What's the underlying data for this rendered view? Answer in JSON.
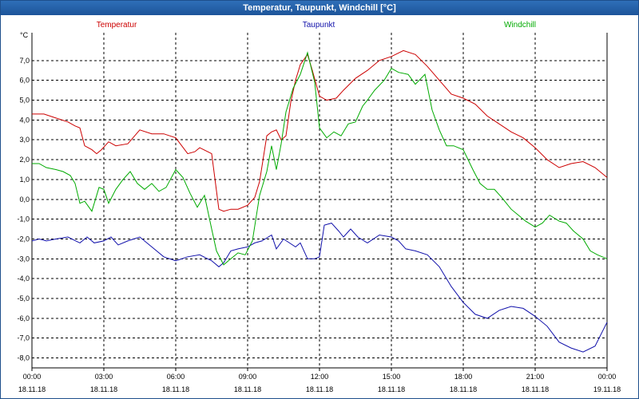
{
  "window": {
    "title": "Temperatur, Taupunkt, Windchill [°C]"
  },
  "chart_data": {
    "type": "line",
    "title": "Temperatur, Taupunkt, Windchill [°C]",
    "ylabel": "°C",
    "ylim": [
      -8.5,
      8.4
    ],
    "y_ticks": [
      "7,0",
      "6,0",
      "5,0",
      "4,0",
      "3,0",
      "2,0",
      "1,0",
      "0,0",
      "-1,0",
      "-2,0",
      "-3,0",
      "-4,0",
      "-5,0",
      "-6,0",
      "-7,0",
      "-8,0"
    ],
    "y_tick_values": [
      7,
      6,
      5,
      4,
      3,
      2,
      1,
      0,
      -1,
      -2,
      -3,
      -4,
      -5,
      -6,
      -7,
      -8
    ],
    "x_range_hours": [
      0,
      24
    ],
    "x_ticks": [
      {
        "time": "00:00",
        "date": "18.11.18",
        "hour": 0
      },
      {
        "time": "03:00",
        "date": "18.11.18",
        "hour": 3
      },
      {
        "time": "06:00",
        "date": "18.11.18",
        "hour": 6
      },
      {
        "time": "09:00",
        "date": "18.11.18",
        "hour": 9
      },
      {
        "time": "12:00",
        "date": "18.11.18",
        "hour": 12
      },
      {
        "time": "15:00",
        "date": "18.11.18",
        "hour": 15
      },
      {
        "time": "18:00",
        "date": "18.11.18",
        "hour": 18
      },
      {
        "time": "21:00",
        "date": "18.11.18",
        "hour": 21
      },
      {
        "time": "00:00",
        "date": "19.11.18",
        "hour": 24
      }
    ],
    "grid": true,
    "series": [
      {
        "name": "Temperatur",
        "color": "#cc0000",
        "x": [
          0,
          0.5,
          1,
          1.5,
          1.8,
          2,
          2.2,
          2.5,
          2.7,
          2.9,
          3.2,
          3.5,
          4,
          4.5,
          5,
          5.5,
          6,
          6.5,
          6.8,
          7,
          7.5,
          7.8,
          8,
          8.3,
          8.6,
          9,
          9.3,
          9.5,
          9.8,
          10,
          10.2,
          10.4,
          10.6,
          10.8,
          11,
          11.2,
          11.5,
          11.7,
          12,
          12.3,
          12.7,
          13,
          13.5,
          14,
          14.5,
          15,
          15.5,
          16,
          16.5,
          17,
          17.5,
          18,
          18.5,
          19,
          19.5,
          20,
          20.5,
          21,
          21.5,
          22,
          22.5,
          23,
          23.5,
          24
        ],
        "values": [
          4.3,
          4.3,
          4.1,
          3.9,
          3.7,
          3.6,
          2.7,
          2.5,
          2.3,
          2.5,
          2.9,
          2.7,
          2.8,
          3.5,
          3.3,
          3.3,
          3.1,
          2.3,
          2.4,
          2.6,
          2.3,
          -0.5,
          -0.6,
          -0.5,
          -0.5,
          -0.3,
          0.1,
          0.9,
          3.2,
          3.4,
          3.5,
          3.0,
          3.2,
          4.9,
          6.0,
          6.8,
          7.3,
          6.5,
          5.2,
          5.0,
          5.1,
          5.5,
          6.1,
          6.5,
          7.0,
          7.2,
          7.5,
          7.3,
          6.7,
          6.0,
          5.3,
          5.1,
          4.8,
          4.2,
          3.8,
          3.4,
          3.1,
          2.6,
          2.0,
          1.6,
          1.8,
          1.9,
          1.6,
          1.1
        ]
      },
      {
        "name": "Taupunkt",
        "color": "#1010aa",
        "x": [
          0,
          0.3,
          0.6,
          1,
          1.5,
          2,
          2.3,
          2.6,
          3,
          3.3,
          3.6,
          4,
          4.5,
          5,
          5.5,
          6,
          6.5,
          7,
          7.5,
          7.8,
          8,
          8.3,
          8.6,
          9,
          9.3,
          9.6,
          10,
          10.2,
          10.5,
          11,
          11.2,
          11.5,
          11.8,
          12,
          12.2,
          12.5,
          12.8,
          13,
          13.3,
          13.6,
          14,
          14.5,
          15,
          15.3,
          15.6,
          16,
          16.5,
          17,
          17.5,
          18,
          18.5,
          19,
          19.5,
          20,
          20.5,
          21,
          21.5,
          22,
          22.5,
          23,
          23.5,
          24
        ],
        "values": [
          -2.1,
          -2.0,
          -2.1,
          -2.0,
          -1.9,
          -2.2,
          -1.9,
          -2.2,
          -2.1,
          -1.9,
          -2.3,
          -2.1,
          -1.9,
          -2.4,
          -2.9,
          -3.1,
          -2.9,
          -2.8,
          -3.1,
          -3.4,
          -3.2,
          -2.6,
          -2.5,
          -2.4,
          -2.2,
          -2.1,
          -1.8,
          -2.5,
          -2.0,
          -2.4,
          -2.2,
          -3.0,
          -3.0,
          -2.9,
          -1.3,
          -1.2,
          -1.6,
          -1.9,
          -1.5,
          -1.9,
          -2.2,
          -1.8,
          -1.9,
          -2.1,
          -2.5,
          -2.6,
          -2.8,
          -3.4,
          -4.4,
          -5.2,
          -5.8,
          -6.0,
          -5.6,
          -5.4,
          -5.5,
          -5.9,
          -6.4,
          -7.2,
          -7.5,
          -7.7,
          -7.4,
          -6.2
        ]
      },
      {
        "name": "Windchill",
        "color": "#00aa00",
        "x": [
          0,
          0.3,
          0.6,
          1,
          1.3,
          1.6,
          1.8,
          2,
          2.2,
          2.5,
          2.8,
          3,
          3.2,
          3.5,
          3.8,
          4.1,
          4.4,
          4.7,
          5,
          5.3,
          5.6,
          6,
          6.3,
          6.6,
          6.9,
          7.2,
          7.5,
          7.7,
          8,
          8.3,
          8.6,
          8.9,
          9.2,
          9.5,
          9.8,
          10,
          10.2,
          10.4,
          10.6,
          10.9,
          11.2,
          11.5,
          11.8,
          12,
          12.3,
          12.6,
          12.9,
          13.2,
          13.5,
          13.8,
          14,
          14.3,
          14.7,
          15,
          15.3,
          15.7,
          16,
          16.4,
          16.7,
          17,
          17.3,
          17.6,
          18,
          18.4,
          18.7,
          19,
          19.3,
          19.6,
          20,
          20.3,
          20.6,
          21,
          21.3,
          21.6,
          22,
          22.3,
          22.6,
          23,
          23.3,
          23.6,
          24
        ],
        "values": [
          1.8,
          1.8,
          1.6,
          1.5,
          1.4,
          1.2,
          0.8,
          -0.2,
          -0.1,
          -0.6,
          0.6,
          0.5,
          -0.2,
          0.5,
          1.0,
          1.4,
          0.8,
          0.5,
          0.8,
          0.4,
          0.6,
          1.5,
          1.1,
          0.3,
          -0.4,
          0.2,
          -1.5,
          -2.6,
          -3.3,
          -3.0,
          -2.7,
          -2.8,
          -2.1,
          0.2,
          1.4,
          2.7,
          1.5,
          2.8,
          4.4,
          5.6,
          6.3,
          7.4,
          5.9,
          3.6,
          3.1,
          3.4,
          3.2,
          3.8,
          3.9,
          4.7,
          5.0,
          5.5,
          6.0,
          6.6,
          6.4,
          6.3,
          5.8,
          6.3,
          4.5,
          3.5,
          2.7,
          2.7,
          2.5,
          1.5,
          0.8,
          0.5,
          0.5,
          0.1,
          -0.5,
          -0.8,
          -1.1,
          -1.4,
          -1.2,
          -0.8,
          -1.1,
          -1.2,
          -1.6,
          -2.0,
          -2.6,
          -2.8,
          -3.0
        ]
      }
    ]
  }
}
